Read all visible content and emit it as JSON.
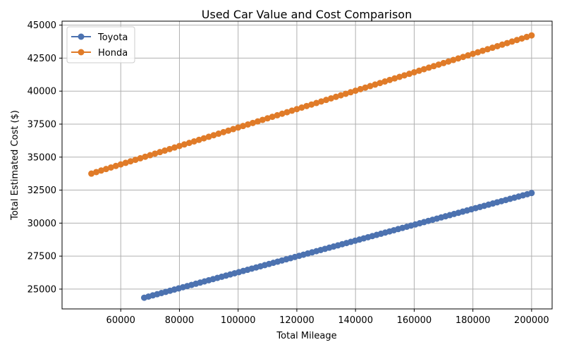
{
  "chart_data": {
    "type": "line",
    "title": "Used Car Value and Cost Comparison",
    "xlabel": "Total Mileage",
    "ylabel": "Total Estimated Cost ($)",
    "xlim": [
      40000,
      207000
    ],
    "ylim": [
      23500,
      45300
    ],
    "xticks": [
      60000,
      80000,
      100000,
      120000,
      140000,
      160000,
      180000,
      200000
    ],
    "yticks": [
      25000,
      27500,
      30000,
      32500,
      35000,
      37500,
      40000,
      42500,
      45000
    ],
    "grid": true,
    "legend_position": "top-left",
    "series": [
      {
        "name": "Toyota",
        "color": "#4c72b0",
        "x_start": 68000,
        "x_end": 200000,
        "y_start": 24350,
        "y_end": 32280,
        "marker": "circle"
      },
      {
        "name": "Honda",
        "color": "#e07b28",
        "x_start": 50000,
        "x_end": 200000,
        "y_start": 33750,
        "y_end": 44220,
        "marker": "circle"
      }
    ]
  }
}
